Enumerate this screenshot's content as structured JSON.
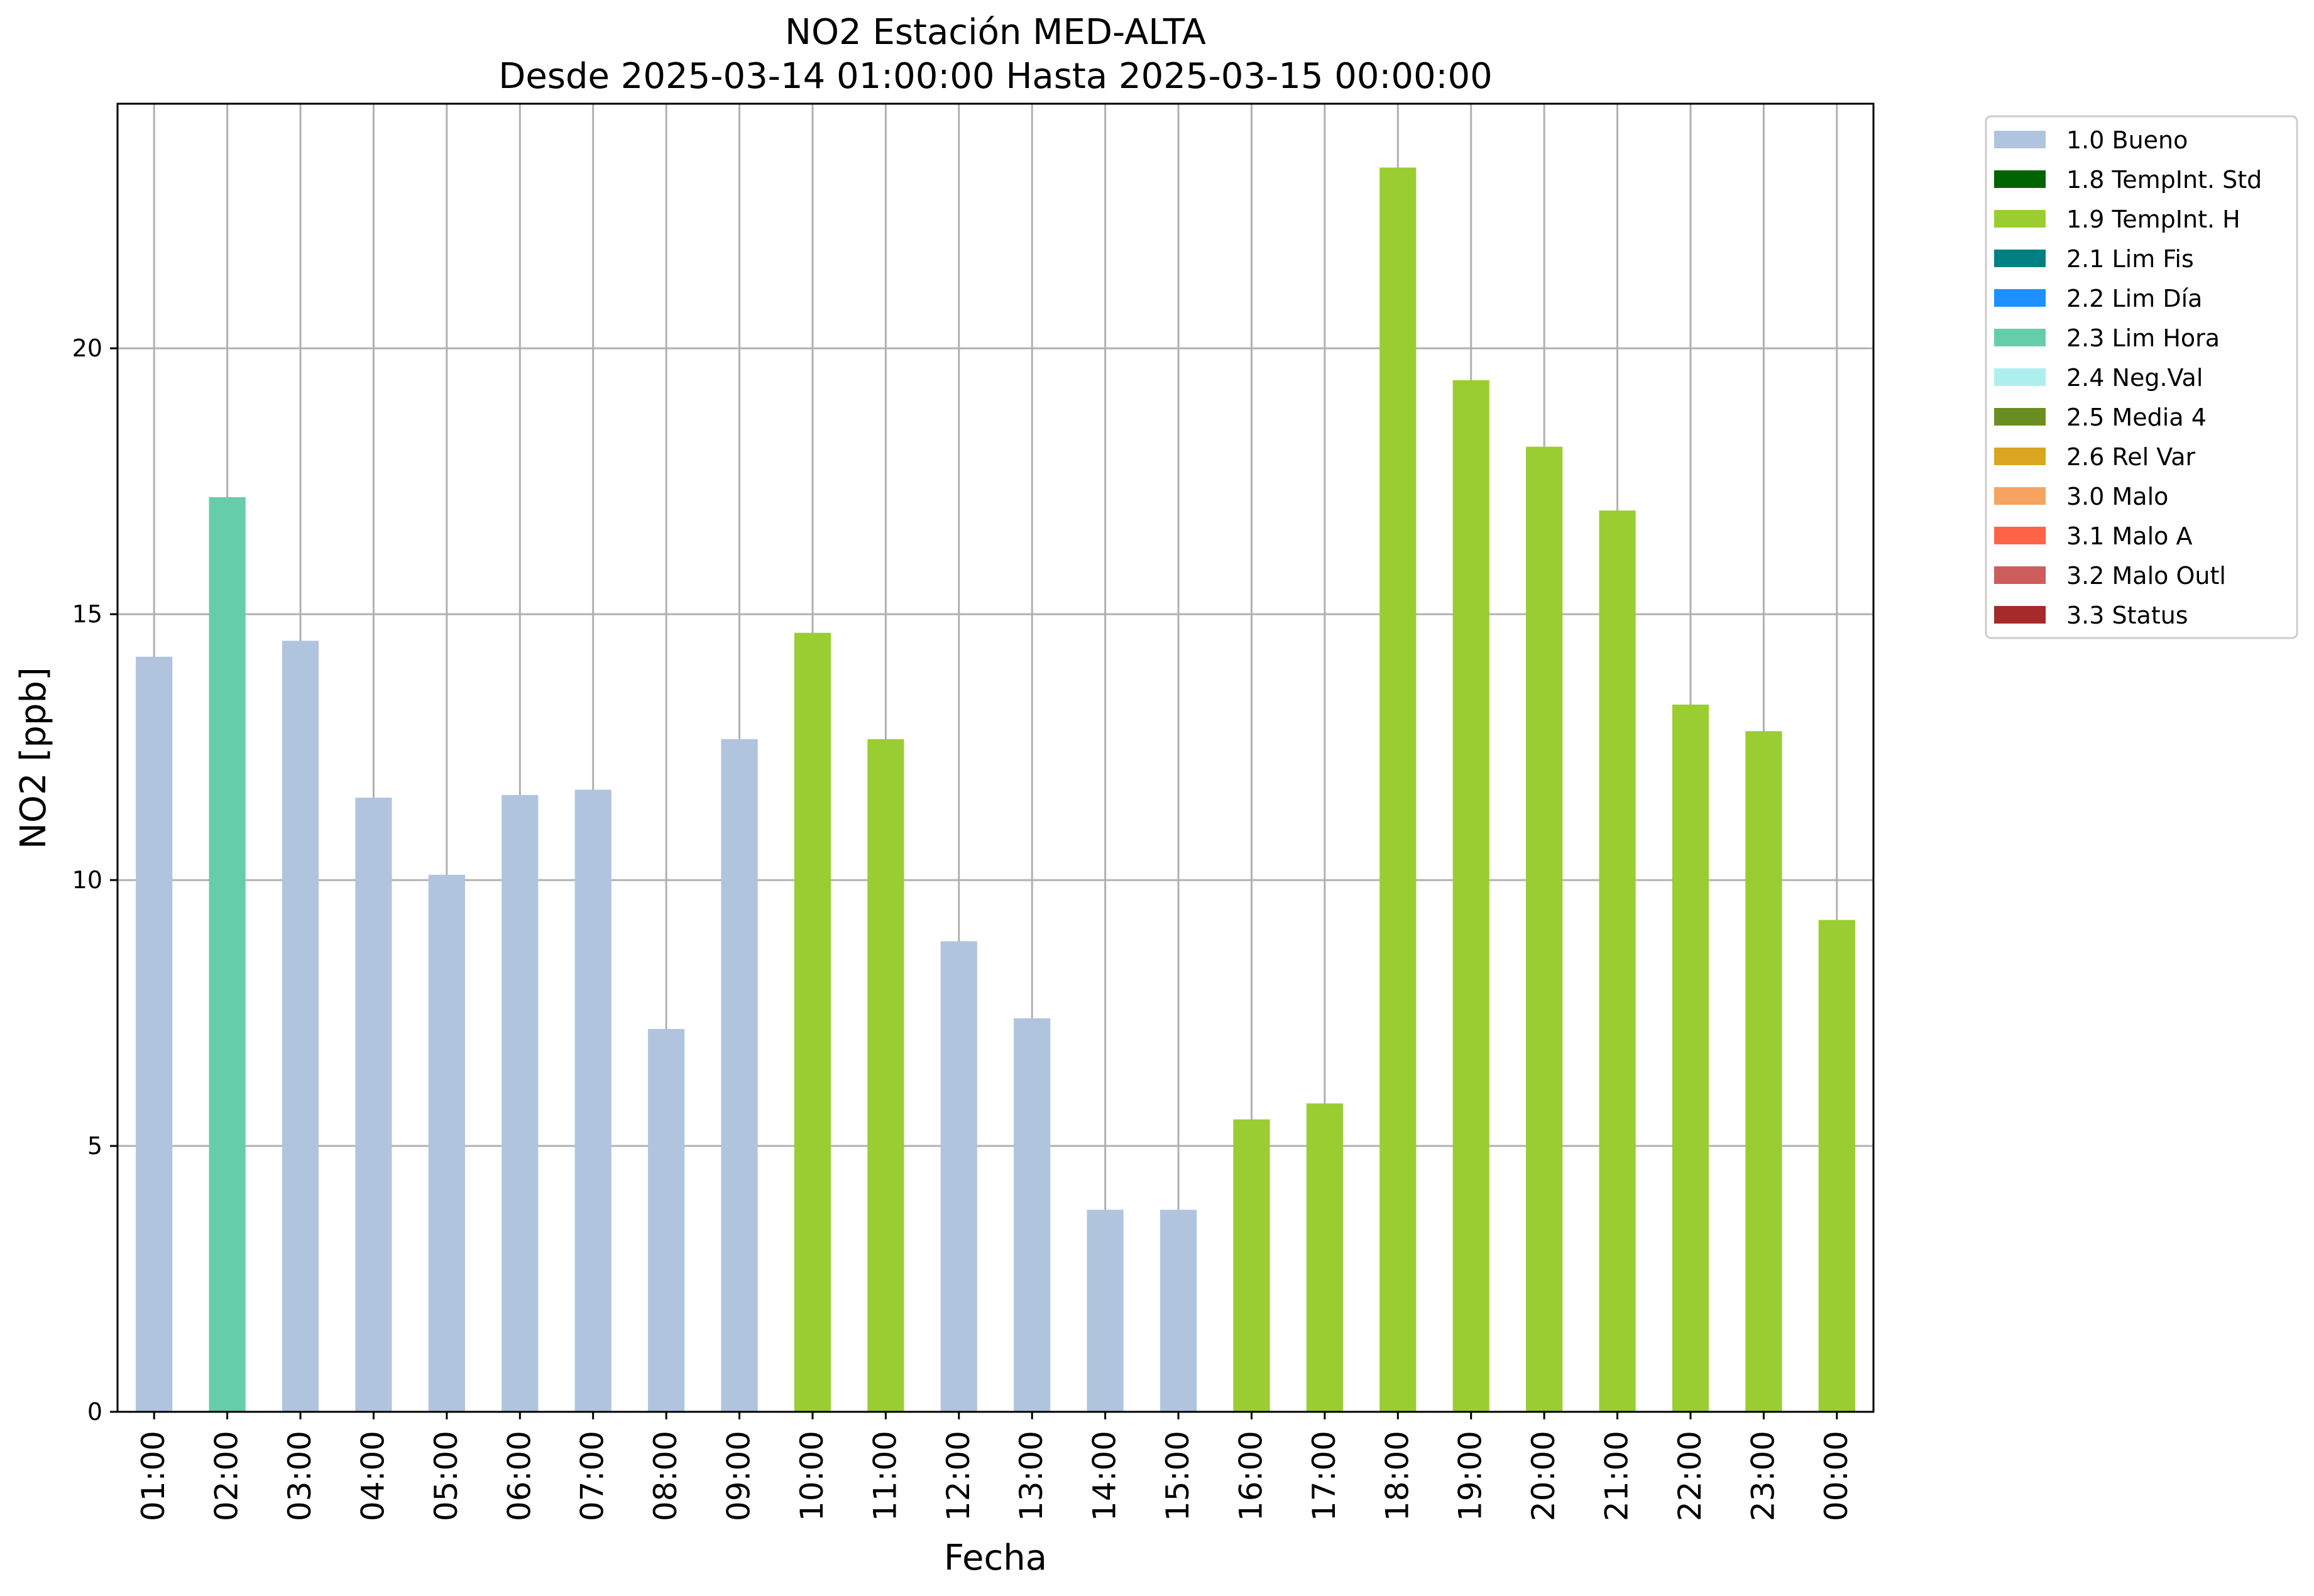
{
  "chart_data": {
    "type": "bar",
    "title": "NO2 Estación MED-ALTA",
    "subtitle": "Desde 2025-03-14 01:00:00 Hasta 2025-03-15 00:00:00",
    "xlabel": "Fecha",
    "ylabel": "NO2 [ppb]",
    "ylim": [
      0,
      24.6
    ],
    "yticks": [
      0,
      5,
      10,
      15,
      20
    ],
    "grid": true,
    "legend_position": "outside-top-right",
    "categories": [
      "01:00",
      "02:00",
      "03:00",
      "04:00",
      "05:00",
      "06:00",
      "07:00",
      "08:00",
      "09:00",
      "10:00",
      "11:00",
      "12:00",
      "13:00",
      "14:00",
      "15:00",
      "16:00",
      "17:00",
      "18:00",
      "19:00",
      "20:00",
      "21:00",
      "22:00",
      "23:00",
      "00:00"
    ],
    "values": [
      14.2,
      17.2,
      14.5,
      11.55,
      10.1,
      11.6,
      11.7,
      7.2,
      12.65,
      14.65,
      12.65,
      8.85,
      7.4,
      3.8,
      3.8,
      5.5,
      5.8,
      23.4,
      19.4,
      18.15,
      16.95,
      13.3,
      12.8,
      9.25
    ],
    "flags": [
      "1.0 Bueno",
      "2.3 Lim Hora",
      "1.0 Bueno",
      "1.0 Bueno",
      "1.0 Bueno",
      "1.0 Bueno",
      "1.0 Bueno",
      "1.0 Bueno",
      "1.0 Bueno",
      "1.9 TempInt. H",
      "1.9 TempInt. H",
      "1.0 Bueno",
      "1.0 Bueno",
      "1.0 Bueno",
      "1.0 Bueno",
      "1.9 TempInt. H",
      "1.9 TempInt. H",
      "1.9 TempInt. H",
      "1.9 TempInt. H",
      "1.9 TempInt. H",
      "1.9 TempInt. H",
      "1.9 TempInt. H",
      "1.9 TempInt. H",
      "1.9 TempInt. H"
    ],
    "legend": [
      {
        "label": "1.0 Bueno",
        "color": "#b0c4de"
      },
      {
        "label": "1.8 TempInt. Std",
        "color": "#006400"
      },
      {
        "label": "1.9 TempInt. H",
        "color": "#9acd32"
      },
      {
        "label": "2.1 Lim Fis",
        "color": "#008080"
      },
      {
        "label": "2.2 Lim Día",
        "color": "#1e90ff"
      },
      {
        "label": "2.3 Lim Hora",
        "color": "#66cdaa"
      },
      {
        "label": "2.4 Neg.Val",
        "color": "#afeeee"
      },
      {
        "label": "2.5 Media 4",
        "color": "#6b8e23"
      },
      {
        "label": "2.6 Rel Var",
        "color": "#daa520"
      },
      {
        "label": "3.0 Malo",
        "color": "#f4a460"
      },
      {
        "label": "3.1 Malo A",
        "color": "#ff6347"
      },
      {
        "label": "3.2 Malo Outl",
        "color": "#cd5c5c"
      },
      {
        "label": "3.3 Status",
        "color": "#a52a2a"
      }
    ]
  }
}
